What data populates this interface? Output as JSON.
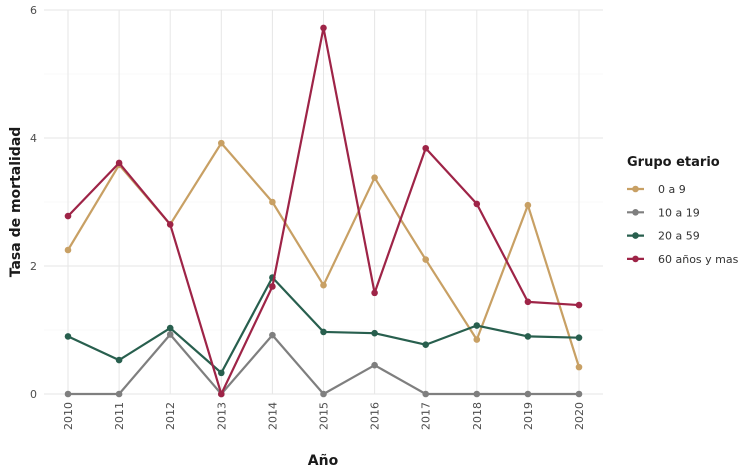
{
  "chart_data": {
    "type": "line",
    "xlabel": "Año",
    "ylabel": "Tasa de mortalidad",
    "x": [
      "2010",
      "2011",
      "2012",
      "2013",
      "2014",
      "2015",
      "2016",
      "2017",
      "2018",
      "2019",
      "2020"
    ],
    "ylim": [
      0,
      6
    ],
    "yticks": [
      "0",
      "2",
      "4",
      "6"
    ],
    "grid": true,
    "legend": {
      "title": "Grupo etario",
      "placement": "right"
    },
    "series": [
      {
        "name": "0 a 9",
        "color": "#c8a064",
        "values": [
          2.25,
          3.58,
          2.65,
          3.92,
          3.0,
          1.7,
          3.38,
          2.1,
          0.85,
          2.95,
          0.42
        ]
      },
      {
        "name": "10 a 19",
        "color": "#7f7f7f",
        "values": [
          0.0,
          0.0,
          0.93,
          0.0,
          0.92,
          0.0,
          0.45,
          0.0,
          0.0,
          0.0,
          0.0
        ]
      },
      {
        "name": "20 a 59",
        "color": "#285f4e",
        "values": [
          0.9,
          0.53,
          1.03,
          0.33,
          1.82,
          0.97,
          0.95,
          0.77,
          1.07,
          0.9,
          0.88
        ]
      },
      {
        "name": "60 años y mas",
        "color": "#9e2447",
        "values": [
          2.78,
          3.61,
          2.65,
          0.0,
          1.68,
          5.72,
          1.58,
          3.84,
          2.97,
          1.44,
          1.39
        ]
      }
    ]
  }
}
